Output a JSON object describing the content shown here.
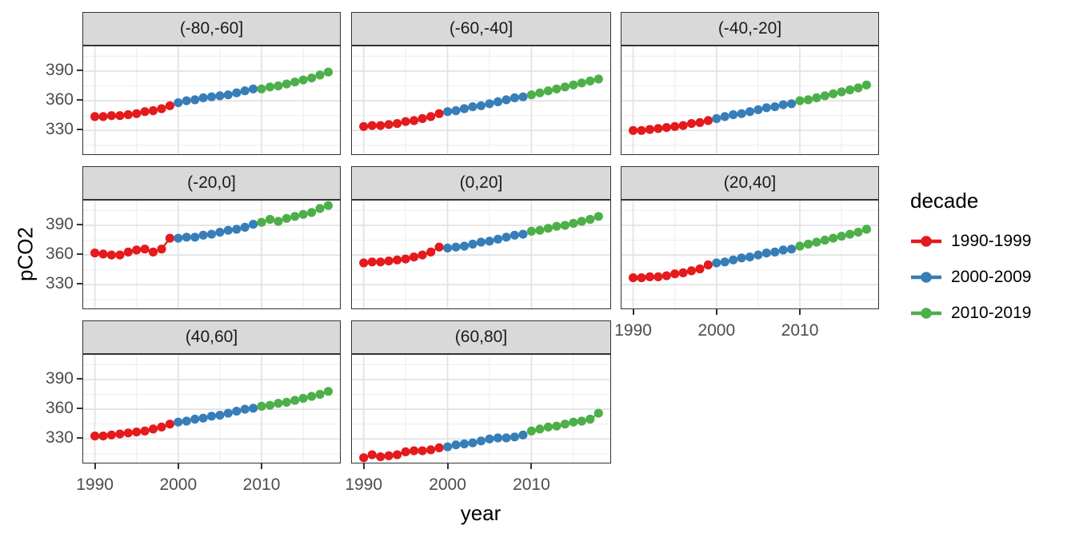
{
  "chart_data": {
    "type": "scatter",
    "title": "",
    "xlabel": "year",
    "ylabel": "pCO2",
    "x_years": [
      1990,
      1991,
      1992,
      1993,
      1994,
      1995,
      1996,
      1997,
      1998,
      1999,
      2000,
      2001,
      2002,
      2003,
      2004,
      2005,
      2006,
      2007,
      2008,
      2009,
      2010,
      2011,
      2012,
      2013,
      2014,
      2015,
      2016,
      2017,
      2018
    ],
    "xticks": [
      1990,
      2000,
      2010
    ],
    "yticks": [
      330,
      360,
      390
    ],
    "xlim": [
      1988.6,
      2019.4
    ],
    "ylim": [
      306,
      415
    ],
    "grid": "major and minor, light grey on white, panel border black (theme_bw)",
    "legend": {
      "title": "decade",
      "position": "right",
      "items": [
        {
          "label": "1990-1999",
          "color": "#e41a1c",
          "start_year": 1990,
          "end_year": 1999
        },
        {
          "label": "2000-2009",
          "color": "#377eb8",
          "start_year": 2000,
          "end_year": 2009
        },
        {
          "label": "2010-2019",
          "color": "#4daf4a",
          "start_year": 2010,
          "end_year": 2018
        }
      ]
    },
    "facets": [
      {
        "label": "(-80,-60]",
        "values": [
          344,
          344,
          345,
          345,
          346,
          347,
          349,
          350,
          352,
          355,
          358,
          360,
          361,
          363,
          364,
          365,
          366,
          368,
          370,
          372,
          372,
          374,
          375,
          377,
          379,
          381,
          383,
          386,
          389
        ]
      },
      {
        "label": "(-60,-40]",
        "values": [
          334,
          335,
          335,
          336,
          337,
          339,
          340,
          342,
          344,
          347,
          349,
          350,
          352,
          354,
          355,
          357,
          359,
          361,
          363,
          364,
          366,
          368,
          370,
          372,
          374,
          376,
          378,
          380,
          382
        ]
      },
      {
        "label": "(-40,-20]",
        "values": [
          330,
          330,
          331,
          332,
          333,
          334,
          335,
          337,
          338,
          340,
          342,
          344,
          346,
          347,
          349,
          351,
          353,
          354,
          356,
          357,
          360,
          361,
          363,
          365,
          367,
          369,
          371,
          373,
          376
        ]
      },
      {
        "label": "(-20,0]",
        "values": [
          362,
          361,
          360,
          360,
          363,
          365,
          366,
          363,
          366,
          377,
          377,
          378,
          378,
          380,
          381,
          383,
          385,
          386,
          388,
          391,
          393,
          396,
          394,
          397,
          399,
          401,
          403,
          407,
          410
        ]
      },
      {
        "label": "(0,20]",
        "values": [
          352,
          353,
          353,
          354,
          355,
          356,
          358,
          360,
          363,
          368,
          367,
          368,
          369,
          371,
          373,
          374,
          376,
          378,
          380,
          381,
          384,
          385,
          387,
          389,
          390,
          392,
          394,
          396,
          399
        ]
      },
      {
        "label": "(20,40]",
        "values": [
          337,
          337,
          338,
          338,
          339,
          341,
          342,
          344,
          346,
          350,
          352,
          353,
          355,
          357,
          358,
          360,
          362,
          363,
          365,
          366,
          369,
          371,
          373,
          375,
          377,
          379,
          381,
          383,
          386
        ]
      },
      {
        "label": "(40,60]",
        "values": [
          333,
          333,
          334,
          335,
          336,
          337,
          338,
          340,
          342,
          345,
          347,
          348,
          350,
          351,
          353,
          354,
          356,
          358,
          360,
          361,
          363,
          364,
          366,
          367,
          369,
          371,
          373,
          375,
          378
        ]
      },
      {
        "label": "(60,80]",
        "values": [
          311,
          314,
          312,
          313,
          314,
          317,
          318,
          318,
          319,
          321,
          322,
          324,
          325,
          326,
          328,
          330,
          331,
          331,
          332,
          334,
          338,
          340,
          342,
          343,
          345,
          347,
          348,
          350,
          356
        ]
      }
    ],
    "style": {
      "grid_major_color": "#e2e2e2",
      "grid_minor_color": "#efefef",
      "strip_fill": "#d9d9d9",
      "border_color": "#333333",
      "axis_text_color": "#4d4d4d",
      "minor_xticks": [
        1995,
        2005,
        2015
      ],
      "minor_yticks": [
        315,
        345,
        375,
        405
      ]
    }
  }
}
